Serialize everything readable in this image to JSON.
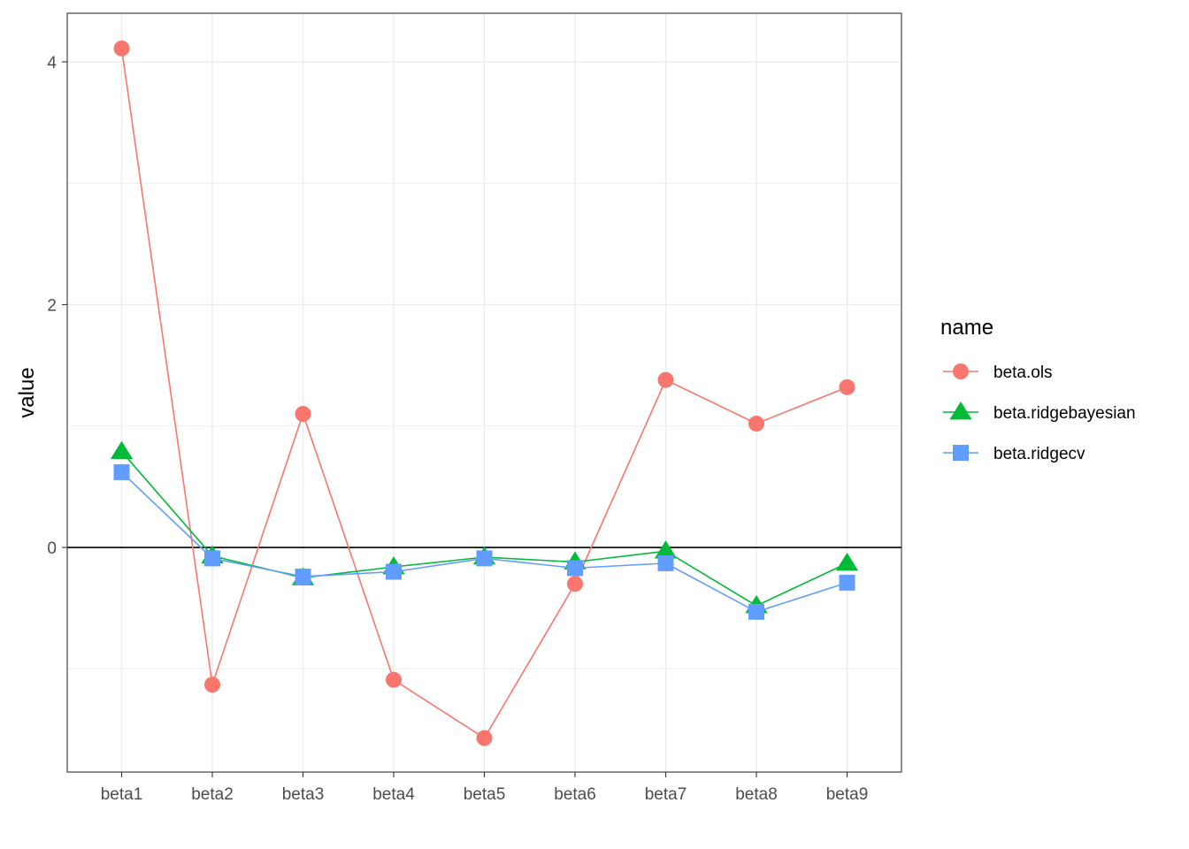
{
  "chart_data": {
    "type": "line",
    "title": "",
    "xlabel": "",
    "ylabel": "value",
    "categories": [
      "beta1",
      "beta2",
      "beta3",
      "beta4",
      "beta5",
      "beta6",
      "beta7",
      "beta8",
      "beta9"
    ],
    "ylim": [
      -1.85,
      4.4
    ],
    "yticks": [
      0,
      2,
      4
    ],
    "y_minor_ticks": [
      -1,
      1,
      3
    ],
    "reference_line_y": 0,
    "grid": true,
    "legend": {
      "title": "name",
      "position": "right"
    },
    "series": [
      {
        "name": "beta.ols",
        "color": "#F8766D",
        "marker": "circle",
        "values": [
          4.11,
          -1.13,
          1.1,
          -1.09,
          -1.57,
          -0.3,
          1.38,
          1.02,
          1.32
        ]
      },
      {
        "name": "beta.ridgebayesian",
        "color": "#00BA38",
        "marker": "triangle",
        "values": [
          0.79,
          -0.07,
          -0.25,
          -0.16,
          -0.08,
          -0.12,
          -0.03,
          -0.48,
          -0.13
        ]
      },
      {
        "name": "beta.ridgecv",
        "color": "#619CFF",
        "marker": "square",
        "values": [
          0.62,
          -0.09,
          -0.24,
          -0.2,
          -0.09,
          -0.17,
          -0.13,
          -0.53,
          -0.29
        ]
      }
    ]
  }
}
